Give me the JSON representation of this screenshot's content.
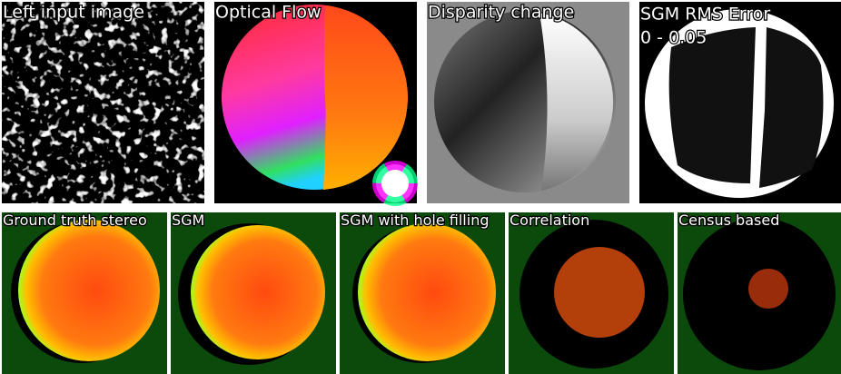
{
  "top_row": [
    {
      "label": "Left input image"
    },
    {
      "label": "Optical Flow"
    },
    {
      "label": "Disparity change"
    },
    {
      "label": "SGM RMS Error",
      "range": "0 - 0.05"
    }
  ],
  "bottom_row": [
    {
      "label": "Ground truth stereo"
    },
    {
      "label": "SGM"
    },
    {
      "label": "SGM with hole filling"
    },
    {
      "label": "Correlation"
    },
    {
      "label": "Census based"
    }
  ]
}
